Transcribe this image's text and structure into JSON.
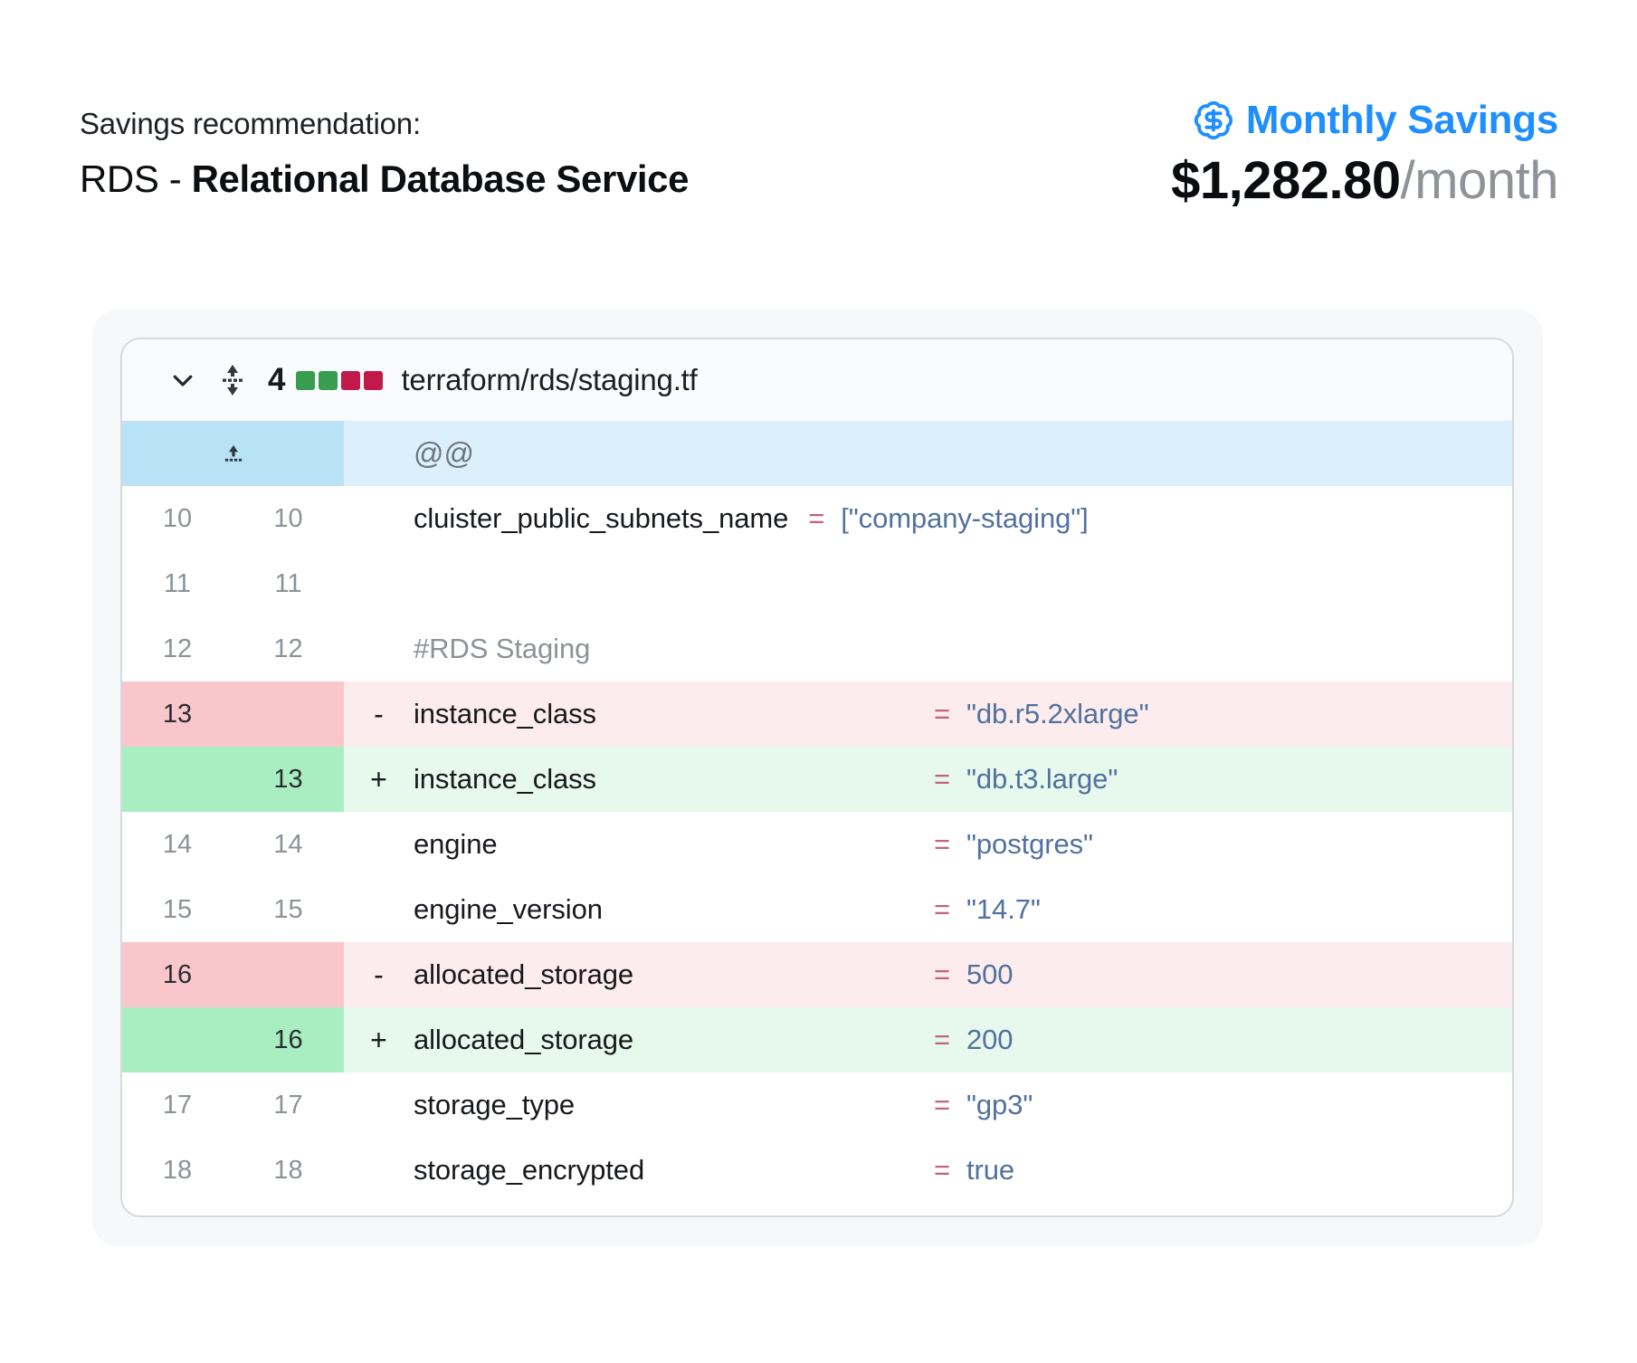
{
  "header": {
    "eyebrow": "Savings recommendation:",
    "title_prefix": "RDS - ",
    "title_strong": "Relational Database Service",
    "savings_label": "Monthly Savings",
    "savings_amount": "$1,282.80",
    "savings_period": "/month"
  },
  "diff": {
    "file": {
      "changes_count": "4",
      "change_squares": [
        "green",
        "green",
        "red",
        "red"
      ],
      "name": "terraform/rds/staging.tf"
    },
    "rows": [
      {
        "type": "hunk",
        "text": "@@"
      },
      {
        "type": "context",
        "old": "10",
        "new": "10",
        "key": "cluister_public_subnets_name",
        "eq": "=",
        "value": "[\"company-staging\"]",
        "aligned": false
      },
      {
        "type": "context",
        "old": "11",
        "new": "11"
      },
      {
        "type": "context",
        "old": "12",
        "new": "12",
        "comment": "#RDS Staging"
      },
      {
        "type": "del",
        "old": "13",
        "marker": "-",
        "key": "instance_class",
        "eq": "=",
        "value": "\"db.r5.2xlarge\"",
        "aligned": true
      },
      {
        "type": "add",
        "new": "13",
        "marker": "+",
        "key": "instance_class",
        "eq": "=",
        "value": "\"db.t3.large\"",
        "aligned": true
      },
      {
        "type": "context",
        "old": "14",
        "new": "14",
        "key": "engine",
        "eq": "=",
        "value": "\"postgres\"",
        "aligned": true
      },
      {
        "type": "context",
        "old": "15",
        "new": "15",
        "key": "engine_version",
        "eq": "=",
        "value": "\"14.7\"",
        "aligned": true
      },
      {
        "type": "del",
        "old": "16",
        "marker": "-",
        "key": "allocated_storage",
        "eq": "=",
        "value": "500",
        "aligned": true
      },
      {
        "type": "add",
        "new": "16",
        "marker": "+",
        "key": "allocated_storage",
        "eq": "=",
        "value": "200",
        "aligned": true
      },
      {
        "type": "context",
        "old": "17",
        "new": "17",
        "key": "storage_type",
        "eq": "=",
        "value": "\"gp3\"",
        "aligned": true
      },
      {
        "type": "context",
        "old": "18",
        "new": "18",
        "key": "storage_encrypted",
        "eq": "=",
        "value": "true",
        "aligned": true
      }
    ]
  },
  "colors": {
    "accent_blue": "#1f8fff",
    "square_green": "#379e4f",
    "square_red": "#c2194b",
    "deleted_gutter": "#f8c6cb",
    "deleted_body": "#fdeced",
    "added_gutter": "#a8eec0",
    "added_body": "#e7f9ec",
    "hunk_gutter": "#b9e2f7",
    "hunk_body": "#dcf0fb",
    "equals_sign": "#c2647a",
    "code_value": "#51719e",
    "muted_text": "#8c9298"
  }
}
